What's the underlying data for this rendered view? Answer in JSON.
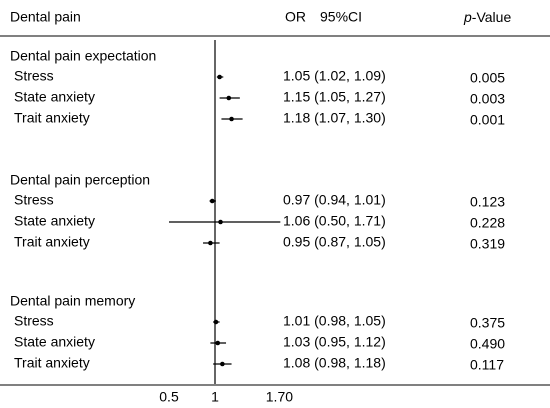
{
  "chart_data": {
    "type": "forest",
    "header": {
      "label": "Dental pain",
      "or": "OR",
      "ci": "95%CI",
      "p_italic": "p",
      "p_rest": "-Value"
    },
    "groups": [
      {
        "name": "Dental pain expectation",
        "rows": [
          {
            "label": "Stress",
            "or": 1.05,
            "lo": 1.02,
            "hi": 1.09,
            "ci_label": "1.05 (1.02, 1.09)",
            "p": "0.005"
          },
          {
            "label": "State anxiety",
            "or": 1.15,
            "lo": 1.05,
            "hi": 1.27,
            "ci_label": "1.15 (1.05, 1.27)",
            "p": "0.003"
          },
          {
            "label": "Trait anxiety",
            "or": 1.18,
            "lo": 1.07,
            "hi": 1.3,
            "ci_label": "1.18 (1.07, 1.30)",
            "p": "0.001"
          }
        ]
      },
      {
        "name": "Dental pain perception",
        "rows": [
          {
            "label": "Stress",
            "or": 0.97,
            "lo": 0.94,
            "hi": 1.01,
            "ci_label": "0.97 (0.94, 1.01)",
            "p": "0.123"
          },
          {
            "label": "State anxiety",
            "or": 1.06,
            "lo": 0.5,
            "hi": 1.71,
            "ci_label": "1.06 (0.50, 1.71)",
            "p": "0.228"
          },
          {
            "label": "Trait anxiety",
            "or": 0.95,
            "lo": 0.87,
            "hi": 1.05,
            "ci_label": "0.95 (0.87, 1.05)",
            "p": "0.319"
          }
        ]
      },
      {
        "name": "Dental pain memory",
        "rows": [
          {
            "label": "Stress",
            "or": 1.01,
            "lo": 0.98,
            "hi": 1.05,
            "ci_label": "1.01 (0.98, 1.05)",
            "p": "0.375"
          },
          {
            "label": "State anxiety",
            "or": 1.03,
            "lo": 0.95,
            "hi": 1.12,
            "ci_label": "1.03 (0.95, 1.12)",
            "p": "0.490"
          },
          {
            "label": "Trait anxiety",
            "or": 1.08,
            "lo": 0.98,
            "hi": 1.18,
            "ci_label": "1.08 (0.98, 1.18)",
            "p": "0.117"
          }
        ]
      }
    ],
    "xlim": [
      0.5,
      1.7
    ],
    "xticks": [
      0.5,
      1,
      {
        "value": 1.7,
        "label": "1.70"
      }
    ],
    "color": "#000000"
  }
}
